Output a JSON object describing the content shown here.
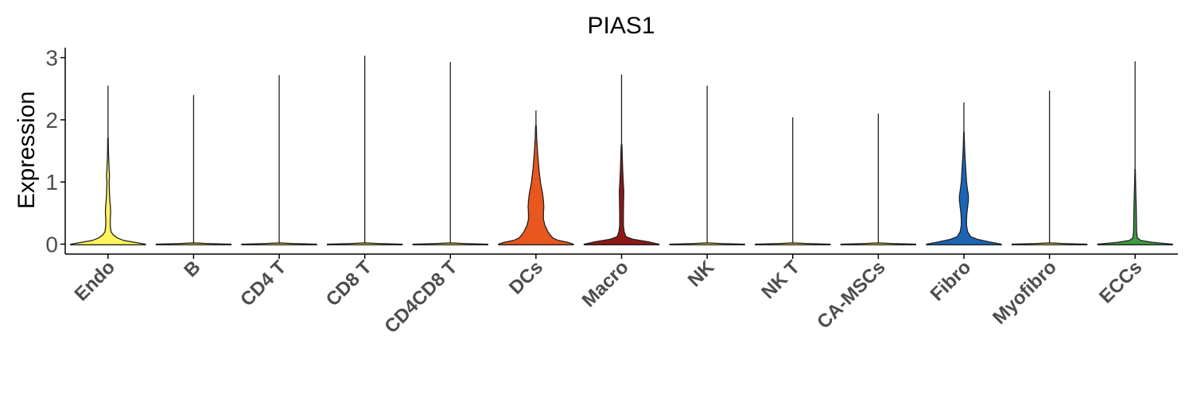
{
  "chart_data": {
    "type": "violin",
    "title": "PIAS1",
    "ylabel": "Expression",
    "xlabel": "",
    "ylim": [
      -0.15,
      3.18
    ],
    "yticks": [
      0,
      1,
      2,
      3
    ],
    "grid": false,
    "legend": "none",
    "categories": [
      "Endo",
      "B",
      "CD4 T",
      "CD8 T",
      "CD4CD8 T",
      "DCs",
      "Macro",
      "NK",
      "NK T",
      "CA-MSCs",
      "Fibro",
      "Myofibro",
      "ECCs"
    ],
    "series": [
      {
        "name": "Endo",
        "max": 2.55,
        "color": "#FFF45C",
        "profile": [
          [
            0,
            1.0
          ],
          [
            0.03,
            0.7
          ],
          [
            0.06,
            0.42
          ],
          [
            0.1,
            0.25
          ],
          [
            0.15,
            0.14
          ],
          [
            0.2,
            0.08
          ],
          [
            0.3,
            0.06
          ],
          [
            0.4,
            0.06
          ],
          [
            0.5,
            0.07
          ],
          [
            0.6,
            0.065
          ],
          [
            0.7,
            0.05
          ],
          [
            0.8,
            0.04
          ],
          [
            0.9,
            0.035
          ],
          [
            1.0,
            0.03
          ],
          [
            1.1,
            0.04
          ],
          [
            1.2,
            0.03
          ],
          [
            1.35,
            0.02
          ],
          [
            1.5,
            0.012
          ],
          [
            1.7,
            0.008
          ]
        ]
      },
      {
        "name": "B",
        "max": 2.4,
        "color": "#FFF45C",
        "profile": [
          [
            0,
            1.0
          ],
          [
            0.01,
            0.4
          ],
          [
            0.02,
            0.0
          ]
        ]
      },
      {
        "name": "CD4 T",
        "max": 2.72,
        "color": "#FFF45C",
        "profile": [
          [
            0,
            1.0
          ],
          [
            0.01,
            0.4
          ],
          [
            0.02,
            0.0
          ]
        ]
      },
      {
        "name": "CD8 T",
        "max": 3.03,
        "color": "#FFF45C",
        "profile": [
          [
            0,
            1.0
          ],
          [
            0.01,
            0.4
          ],
          [
            0.02,
            0.0
          ]
        ]
      },
      {
        "name": "CD4CD8 T",
        "max": 2.93,
        "color": "#FFF45C",
        "profile": [
          [
            0,
            1.0
          ],
          [
            0.01,
            0.4
          ],
          [
            0.02,
            0.0
          ]
        ]
      },
      {
        "name": "DCs",
        "max": 2.15,
        "color": "#E9571E",
        "profile": [
          [
            0,
            1.0
          ],
          [
            0.03,
            0.85
          ],
          [
            0.06,
            0.6
          ],
          [
            0.1,
            0.45
          ],
          [
            0.15,
            0.38
          ],
          [
            0.2,
            0.32
          ],
          [
            0.3,
            0.24
          ],
          [
            0.4,
            0.2
          ],
          [
            0.5,
            0.2
          ],
          [
            0.6,
            0.21
          ],
          [
            0.7,
            0.2
          ],
          [
            0.8,
            0.18
          ],
          [
            0.9,
            0.15
          ],
          [
            1.0,
            0.12
          ],
          [
            1.1,
            0.1
          ],
          [
            1.2,
            0.08
          ],
          [
            1.35,
            0.06
          ],
          [
            1.5,
            0.04
          ],
          [
            1.7,
            0.02
          ],
          [
            1.9,
            0.01
          ]
        ]
      },
      {
        "name": "Macro",
        "max": 2.73,
        "color": "#8E1716",
        "profile": [
          [
            0,
            1.0
          ],
          [
            0.04,
            0.7
          ],
          [
            0.08,
            0.3
          ],
          [
            0.12,
            0.12
          ],
          [
            0.2,
            0.07
          ],
          [
            0.3,
            0.05
          ],
          [
            0.5,
            0.05
          ],
          [
            0.7,
            0.055
          ],
          [
            0.85,
            0.06
          ],
          [
            1.0,
            0.045
          ],
          [
            1.2,
            0.03
          ],
          [
            1.4,
            0.02
          ],
          [
            1.6,
            0.01
          ]
        ]
      },
      {
        "name": "NK",
        "max": 2.55,
        "color": "#FFF45C",
        "profile": [
          [
            0,
            1.0
          ],
          [
            0.01,
            0.4
          ],
          [
            0.02,
            0.0
          ]
        ]
      },
      {
        "name": "NK T",
        "max": 2.04,
        "color": "#FFF45C",
        "profile": [
          [
            0,
            1.0
          ],
          [
            0.01,
            0.4
          ],
          [
            0.02,
            0.0
          ]
        ]
      },
      {
        "name": "CA-MSCs",
        "max": 2.1,
        "color": "#FFF45C",
        "profile": [
          [
            0,
            1.0
          ],
          [
            0.01,
            0.4
          ],
          [
            0.02,
            0.0
          ]
        ]
      },
      {
        "name": "Fibro",
        "max": 2.28,
        "color": "#1B65B7",
        "profile": [
          [
            0,
            1.0
          ],
          [
            0.04,
            0.65
          ],
          [
            0.08,
            0.35
          ],
          [
            0.12,
            0.18
          ],
          [
            0.2,
            0.1
          ],
          [
            0.3,
            0.07
          ],
          [
            0.4,
            0.07
          ],
          [
            0.5,
            0.08
          ],
          [
            0.6,
            0.1
          ],
          [
            0.7,
            0.12
          ],
          [
            0.78,
            0.12
          ],
          [
            0.9,
            0.09
          ],
          [
            1.0,
            0.07
          ],
          [
            1.1,
            0.06
          ],
          [
            1.2,
            0.05
          ],
          [
            1.4,
            0.03
          ],
          [
            1.6,
            0.015
          ],
          [
            1.8,
            0.006
          ]
        ]
      },
      {
        "name": "Myofibro",
        "max": 2.47,
        "color": "#FFF45C",
        "profile": [
          [
            0,
            1.0
          ],
          [
            0.01,
            0.4
          ],
          [
            0.02,
            0.0
          ]
        ]
      },
      {
        "name": "ECCs",
        "max": 2.94,
        "color": "#3E9A43",
        "profile": [
          [
            0,
            1.0
          ],
          [
            0.03,
            0.45
          ],
          [
            0.06,
            0.15
          ],
          [
            0.1,
            0.06
          ],
          [
            0.2,
            0.04
          ],
          [
            0.4,
            0.035
          ],
          [
            0.6,
            0.03
          ],
          [
            0.8,
            0.02
          ],
          [
            1.0,
            0.012
          ],
          [
            1.2,
            0.006
          ]
        ]
      }
    ]
  }
}
